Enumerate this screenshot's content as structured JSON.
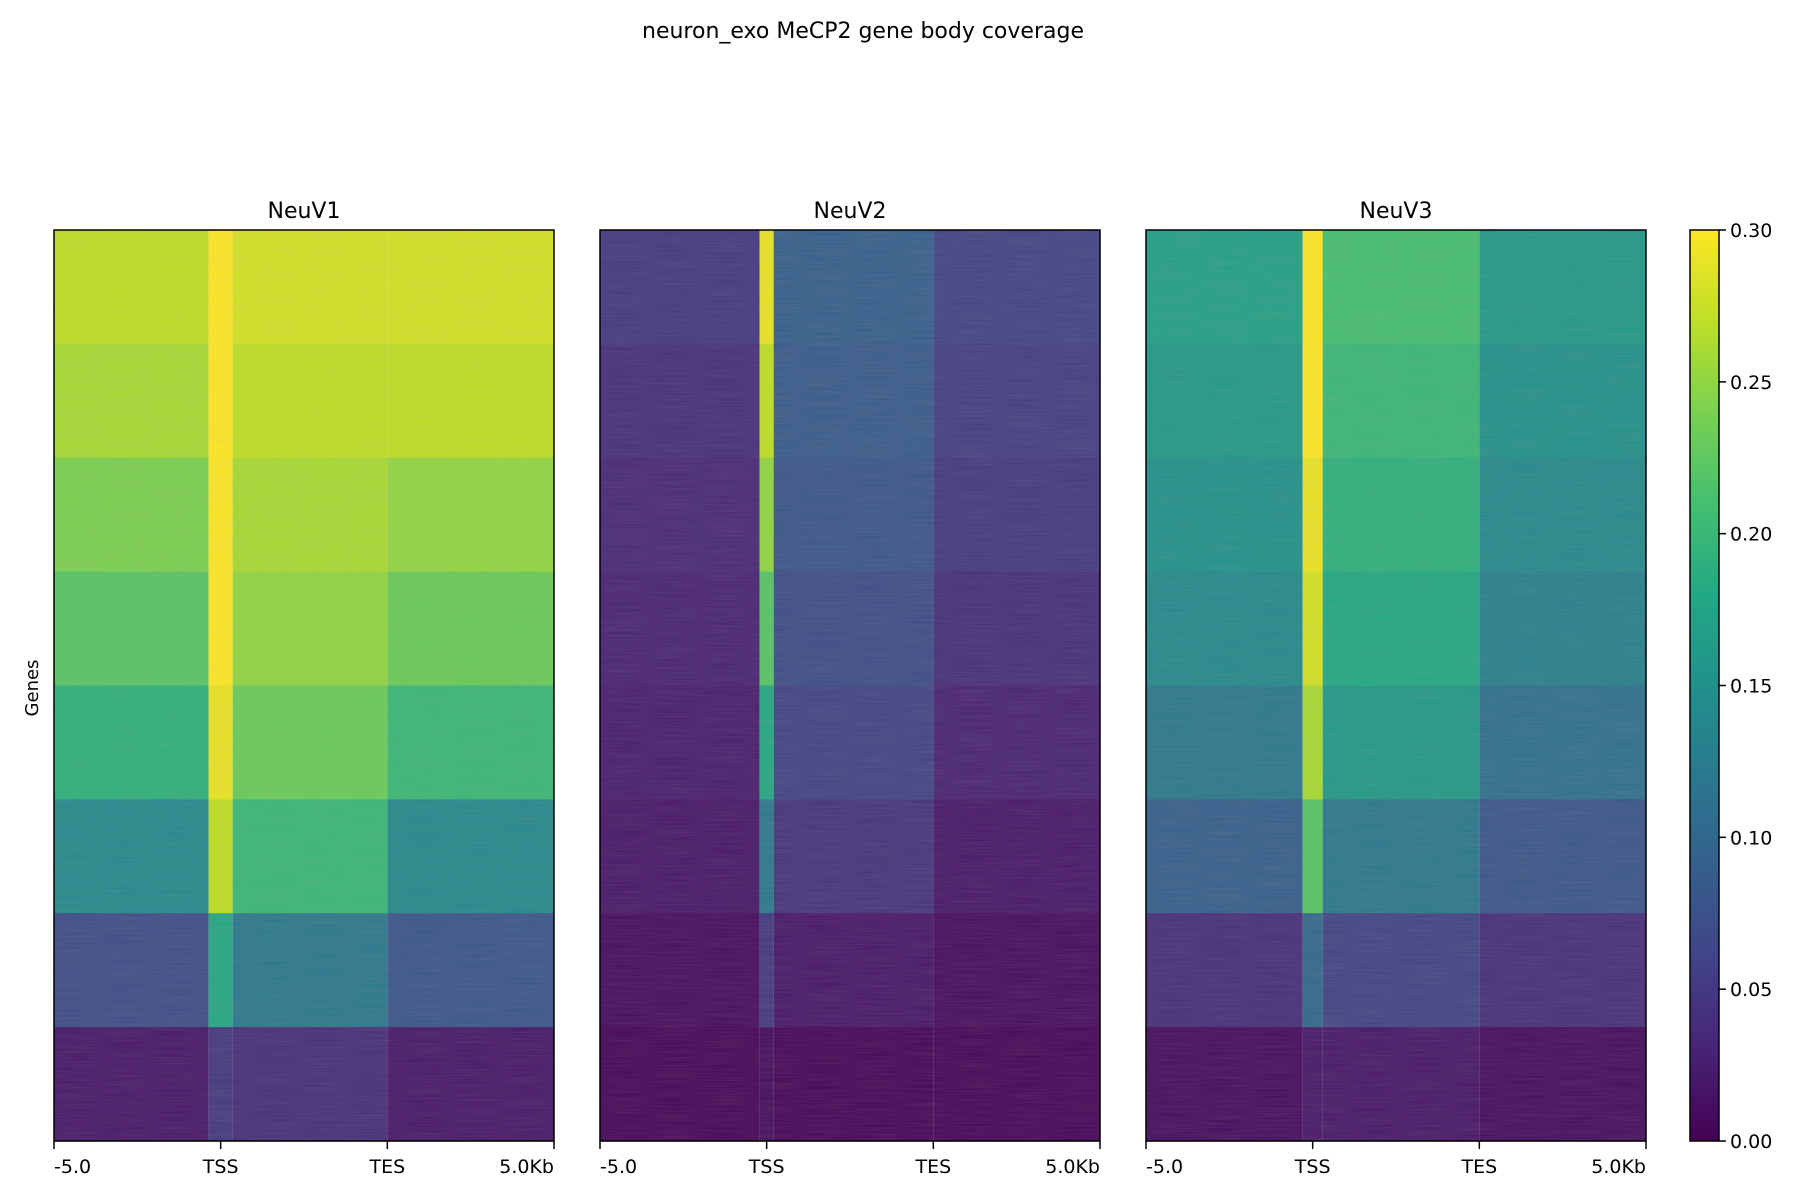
{
  "chart_data": {
    "type": "heatmap",
    "title": "neuron_exo MeCP2 gene body coverage",
    "ylabel": "Genes",
    "colormap": "viridis",
    "colorbar": {
      "range": [
        0.0,
        0.3
      ],
      "tick_labels": [
        "0.00",
        "0.05",
        "0.10",
        "0.15",
        "0.20",
        "0.25",
        "0.30"
      ],
      "tick_values": [
        0.0,
        0.05,
        0.1,
        0.15,
        0.2,
        0.25,
        0.3
      ]
    },
    "x_tick_labels": [
      "-5.0",
      "TSS",
      "TES",
      "5.0Kb"
    ],
    "x_tick_positions_kb_scaled": [
      0,
      1,
      2,
      3
    ],
    "panels": [
      {
        "name": "NeuV1",
        "values_by_region_top_to_bottom": {
          "upstream": [
            0.27,
            0.26,
            0.24,
            0.22,
            0.19,
            0.14,
            0.07,
            0.02
          ],
          "tss_peak": [
            0.3,
            0.3,
            0.3,
            0.3,
            0.29,
            0.27,
            0.18,
            0.05
          ],
          "gene_body": [
            0.28,
            0.27,
            0.26,
            0.25,
            0.23,
            0.2,
            0.12,
            0.04
          ],
          "downstream": [
            0.28,
            0.27,
            0.25,
            0.23,
            0.2,
            0.14,
            0.08,
            0.02
          ]
        }
      },
      {
        "name": "NeuV2",
        "values_by_region_top_to_bottom": {
          "upstream": [
            0.05,
            0.04,
            0.035,
            0.03,
            0.025,
            0.02,
            0.01,
            0.005
          ],
          "tss_peak": [
            0.29,
            0.27,
            0.25,
            0.22,
            0.18,
            0.12,
            0.05,
            0.01
          ],
          "gene_body": [
            0.09,
            0.085,
            0.08,
            0.07,
            0.06,
            0.045,
            0.02,
            0.005
          ],
          "downstream": [
            0.06,
            0.055,
            0.05,
            0.04,
            0.03,
            0.02,
            0.01,
            0.005
          ]
        }
      },
      {
        "name": "NeuV3",
        "values_by_region_top_to_bottom": {
          "upstream": [
            0.17,
            0.16,
            0.15,
            0.14,
            0.12,
            0.09,
            0.04,
            0.01
          ],
          "tss_peak": [
            0.3,
            0.3,
            0.29,
            0.28,
            0.26,
            0.22,
            0.1,
            0.02
          ],
          "gene_body": [
            0.21,
            0.2,
            0.19,
            0.18,
            0.16,
            0.12,
            0.06,
            0.02
          ],
          "downstream": [
            0.16,
            0.15,
            0.14,
            0.13,
            0.11,
            0.08,
            0.04,
            0.01
          ]
        }
      }
    ]
  }
}
